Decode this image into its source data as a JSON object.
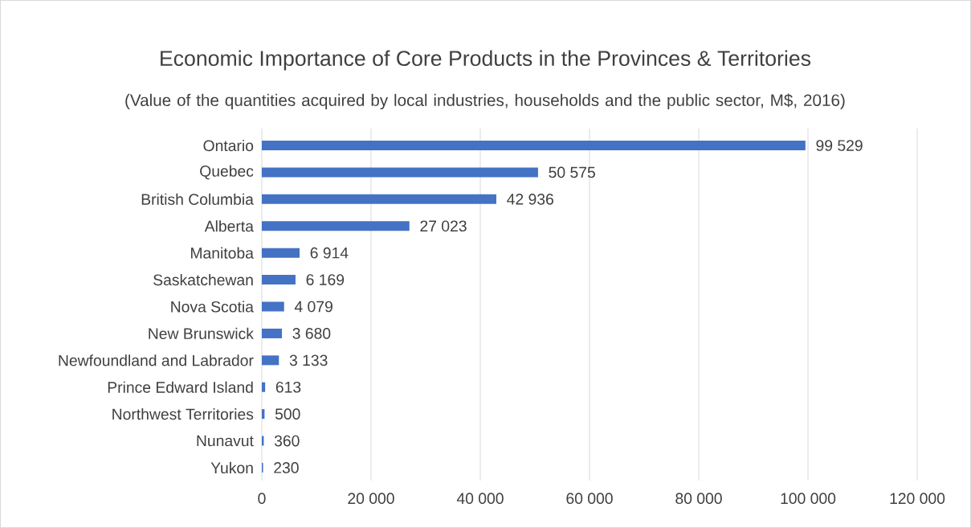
{
  "chart_data": {
    "type": "bar",
    "orientation": "horizontal",
    "title": "Economic Importance of Core Products in the Provinces & Territories",
    "subtitle": "(Value of the quantities acquired by local industries, households and the public sector, M$, 2016)",
    "categories": [
      "Ontario",
      "Quebec",
      "British Columbia",
      "Alberta",
      "Manitoba",
      "Saskatchewan",
      "Nova Scotia",
      "New Brunswick",
      "Newfoundland and Labrador",
      "Prince Edward Island",
      "Northwest Territories",
      "Nunavut",
      "Yukon"
    ],
    "values": [
      99529,
      50575,
      42936,
      27023,
      6914,
      6169,
      4079,
      3680,
      3133,
      613,
      500,
      360,
      230
    ],
    "value_labels": [
      "99 529",
      "50 575",
      "42 936",
      "27 023",
      "6 914",
      "6 169",
      "4 079",
      "3 680",
      "3 133",
      "613",
      "500",
      "360",
      "230"
    ],
    "color": "#4472c4",
    "xlim": [
      0,
      120000
    ],
    "xticks": [
      0,
      {
        "value": 20000,
        "label": "20 000"
      },
      {
        "value": 40000,
        "label": "40 000"
      },
      {
        "value": 60000,
        "label": "60 000"
      },
      {
        "value": 80000,
        "label": "80 000"
      },
      {
        "value": 100000,
        "label": "100 000"
      },
      {
        "value": 120000,
        "label": "120 000"
      }
    ],
    "grid": "x"
  }
}
